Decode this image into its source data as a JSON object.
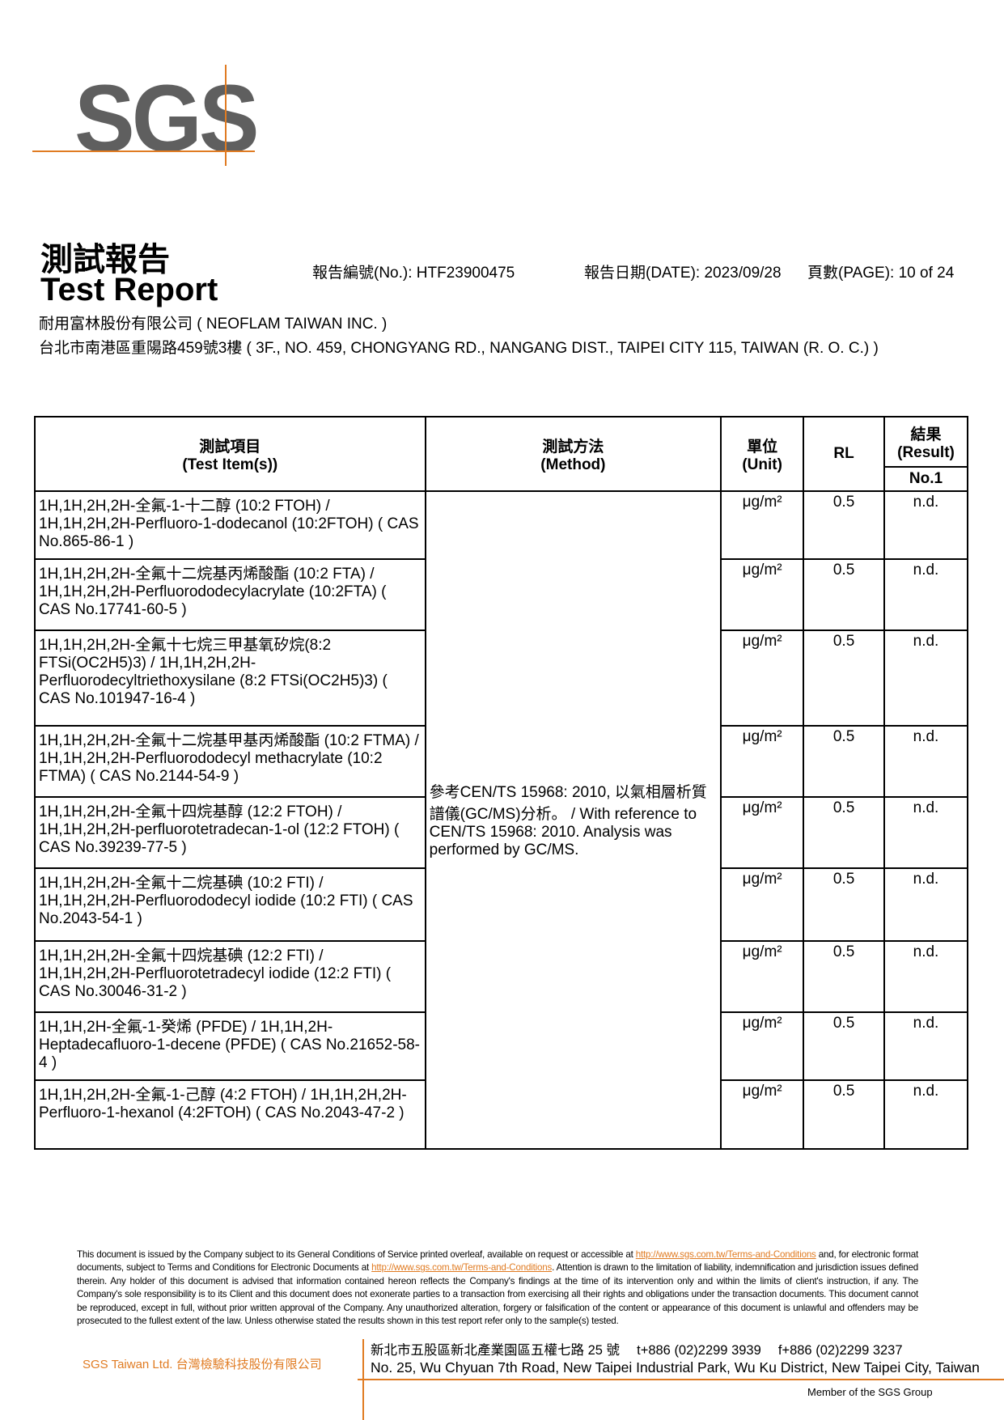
{
  "logo": {
    "text": "SGS",
    "accent": "#e07b22",
    "gray": "#5f5f5f"
  },
  "header": {
    "title_zh": "測試報告",
    "title_en": "Test Report",
    "report_no": "報告編號(No.): HTF23900475",
    "date": "報告日期(DATE): 2023/09/28",
    "page": "頁數(PAGE): 10 of 24",
    "client": "耐用富林股份有限公司 ( NEOFLAM TAIWAN INC. )",
    "address": "台北市南港區重陽路459號3樓 ( 3F., NO. 459, CHONGYANG RD., NANGANG DIST., TAIPEI CITY 115, TAIWAN (R. O. C.) )"
  },
  "table": {
    "headers": {
      "item_zh": "測試項目",
      "item_en": "(Test Item(s))",
      "method_zh": "測試方法",
      "method_en": "(Method)",
      "unit_zh": "單位",
      "unit_en": "(Unit)",
      "rl": "RL",
      "result_zh": "結果",
      "result_en": "(Result)",
      "no1": "No.1"
    },
    "method": "參考CEN/TS 15968: 2010, 以氣相層析質譜儀(GC/MS)分析。 / With reference to CEN/TS 15968: 2010. Analysis was performed by GC/MS.",
    "rows": [
      {
        "item": "1H,1H,2H,2H-全氟-1-十二醇 (10:2 FTOH) / 1H,1H,2H,2H-Perfluoro-1-dodecanol (10:2FTOH) ( CAS No.865-86-1 )",
        "unit": "μg/m²",
        "rl": "0.5",
        "result": "n.d."
      },
      {
        "item": "1H,1H,2H,2H-全氟十二烷基丙烯酸酯 (10:2 FTA) / 1H,1H,2H,2H-Perfluorododecylacrylate (10:2FTA) ( CAS No.17741-60-5 )",
        "unit": "μg/m²",
        "rl": "0.5",
        "result": "n.d."
      },
      {
        "item": "1H,1H,2H,2H-全氟十七烷三甲基氧矽烷(8:2 FTSi(OC2H5)3) / 1H,1H,2H,2H-Perfluorodecyltriethoxysilane (8:2 FTSi(OC2H5)3) ( CAS No.101947-16-4 )",
        "unit": "μg/m²",
        "rl": "0.5",
        "result": "n.d."
      },
      {
        "item": "1H,1H,2H,2H-全氟十二烷基甲基丙烯酸酯 (10:2 FTMA) / 1H,1H,2H,2H-Perfluorododecyl methacrylate (10:2 FTMA) ( CAS No.2144-54-9 )",
        "unit": "μg/m²",
        "rl": "0.5",
        "result": "n.d."
      },
      {
        "item": "1H,1H,2H,2H-全氟十四烷基醇 (12:2 FTOH) / 1H,1H,2H,2H-perfluorotetradecan-1-ol (12:2 FTOH) ( CAS No.39239-77-5 )",
        "unit": "μg/m²",
        "rl": "0.5",
        "result": "n.d."
      },
      {
        "item": "1H,1H,2H,2H-全氟十二烷基碘 (10:2 FTI) / 1H,1H,2H,2H-Perfluorododecyl iodide (10:2 FTI) ( CAS No.2043-54-1 )",
        "unit": "μg/m²",
        "rl": "0.5",
        "result": "n.d."
      },
      {
        "item": "1H,1H,2H,2H-全氟十四烷基碘 (12:2 FTI) / 1H,1H,2H,2H-Perfluorotetradecyl iodide (12:2 FTI) ( CAS No.30046-31-2 )",
        "unit": "μg/m²",
        "rl": "0.5",
        "result": "n.d."
      },
      {
        "item": "1H,1H,2H-全氟-1-癸烯 (PFDE) / 1H,1H,2H-Heptadecafluoro-1-decene (PFDE) ( CAS No.21652-58-4 )",
        "unit": "μg/m²",
        "rl": "0.5",
        "result": "n.d."
      },
      {
        "item": "1H,1H,2H,2H-全氟-1-己醇 (4:2 FTOH) / 1H,1H,2H,2H-Perfluoro-1-hexanol (4:2FTOH) ( CAS No.2043-47-2 )",
        "unit": "μg/m²",
        "rl": "0.5",
        "result": "n.d."
      }
    ]
  },
  "footer": {
    "d1": "This document is issued by the Company subject to its General Conditions of Service printed overleaf, available on request or accessible at ",
    "link": "http://www.sgs.com.tw/Terms-and-Conditions",
    "d2": " and, for electronic format documents, subject to Terms and Conditions for Electronic Documents at ",
    "d3": ". Attention is drawn to the limitation of liability, indemnification and jurisdiction issues defined therein. Any holder of this document is advised that information contained hereon reflects the Company's findings at the time of its intervention only and within the limits of client's instruction, if any. The Company's sole responsibility is to its Client and this document does not exonerate parties to a transaction from exercising all their rights and obligations under the transaction documents. This document cannot be reproduced, except in full, without prior written approval of the Company. Any unauthorized alteration, forgery or falsification of the content or appearance of this document is unlawful and offenders may be prosecuted to the fullest extent of the law. Unless otherwise stated the results shown in this test report refer only to the sample(s) tested.",
    "company": "SGS Taiwan Ltd.  台灣檢驗科技股份有限公司",
    "address_zh": "新北市五股區新北產業園區五權七路 25 號　 t+886 (02)2299 3939　 f+886 (02)2299 3237",
    "address_en": "No. 25, Wu Chyuan 7th Road, New Taipei Industrial Park, Wu Ku District, New Taipei City, Taiwan",
    "member": "Member of the SGS Group"
  }
}
